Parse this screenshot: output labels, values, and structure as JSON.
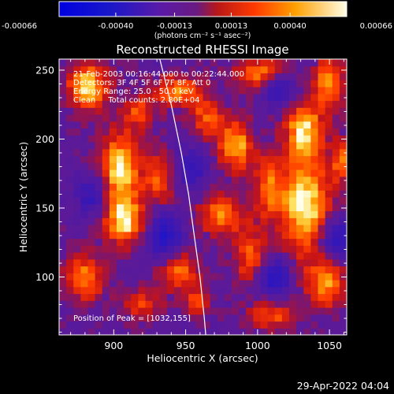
{
  "footer": {
    "timestamp": "29-Apr-2022 04:04"
  },
  "chart_data": {
    "type": "heatmap",
    "title": "Reconstructed RHESSI Image",
    "xlabel": "Heliocentric X (arcsec)",
    "ylabel": "Heliocentric Y (arcsec)",
    "xlim": [
      862,
      1062
    ],
    "ylim": [
      58,
      258
    ],
    "xticks": [
      "900",
      "950",
      "1000",
      "1050"
    ],
    "xtick_values": [
      900,
      950,
      1000,
      1050
    ],
    "yticks": [
      "100",
      "150",
      "200",
      "250"
    ],
    "ytick_values": [
      100,
      150,
      200,
      250
    ],
    "colorbar": {
      "min": -0.00066,
      "max": 0.00066,
      "tick_labels": [
        "-0.00066",
        "-0.00040",
        "-0.00013",
        "0.00013",
        "0.00040",
        "0.00066"
      ],
      "tick_values": [
        -0.00066,
        -0.0004,
        -0.00013,
        0.00013,
        0.0004,
        0.00066
      ],
      "unit_label": "(photons cm⁻² s⁻¹ asec⁻²)"
    },
    "annotations": [
      "21-Feb-2003 00:16:44.000 to 00:22:44.000",
      "Detectors: 3F 4F 5F 6F 7F 8F, Att 0",
      "Energy Range: 25.0 - 50.0 keV",
      "Clean     Total counts: 2.80E+04"
    ],
    "peak_label": "Position of Peak = [1032,155]",
    "peak": [
      1032,
      155
    ],
    "limb_curve": [
      [
        932,
        258
      ],
      [
        940,
        225
      ],
      [
        947,
        190
      ],
      [
        952,
        160
      ],
      [
        956,
        130
      ],
      [
        960,
        100
      ],
      [
        963,
        70
      ],
      [
        964,
        58
      ]
    ],
    "bright_sources": [
      {
        "x": 1033,
        "y": 152,
        "intensity": 1.0,
        "sx": 12,
        "sy": 26
      },
      {
        "x": 905,
        "y": 178,
        "intensity": 0.95,
        "sx": 10,
        "sy": 20
      },
      {
        "x": 908,
        "y": 140,
        "intensity": 0.85,
        "sx": 10,
        "sy": 12
      },
      {
        "x": 882,
        "y": 238,
        "intensity": 0.95,
        "sx": 10,
        "sy": 12
      },
      {
        "x": 1032,
        "y": 207,
        "intensity": 0.85,
        "sx": 9,
        "sy": 14
      },
      {
        "x": 985,
        "y": 195,
        "intensity": 0.8,
        "sx": 9,
        "sy": 13
      },
      {
        "x": 975,
        "y": 145,
        "intensity": 0.7,
        "sx": 12,
        "sy": 10
      },
      {
        "x": 945,
        "y": 105,
        "intensity": 0.7,
        "sx": 10,
        "sy": 10
      },
      {
        "x": 932,
        "y": 170,
        "intensity": 0.55,
        "sx": 7,
        "sy": 14
      },
      {
        "x": 945,
        "y": 235,
        "intensity": 0.75,
        "sx": 12,
        "sy": 8
      },
      {
        "x": 1000,
        "y": 248,
        "intensity": 0.7,
        "sx": 12,
        "sy": 8
      },
      {
        "x": 1050,
        "y": 240,
        "intensity": 0.75,
        "sx": 8,
        "sy": 14
      },
      {
        "x": 995,
        "y": 115,
        "intensity": 0.6,
        "sx": 8,
        "sy": 14
      },
      {
        "x": 1008,
        "y": 165,
        "intensity": 0.65,
        "sx": 7,
        "sy": 16
      },
      {
        "x": 965,
        "y": 215,
        "intensity": 0.6,
        "sx": 8,
        "sy": 10
      },
      {
        "x": 880,
        "y": 100,
        "intensity": 0.7,
        "sx": 10,
        "sy": 12
      },
      {
        "x": 1048,
        "y": 95,
        "intensity": 0.7,
        "sx": 10,
        "sy": 12
      },
      {
        "x": 920,
        "y": 80,
        "intensity": 0.5,
        "sx": 10,
        "sy": 8
      },
      {
        "x": 1010,
        "y": 72,
        "intensity": 0.55,
        "sx": 12,
        "sy": 8
      },
      {
        "x": 1058,
        "y": 185,
        "intensity": 0.6,
        "sx": 5,
        "sy": 12
      },
      {
        "x": 918,
        "y": 220,
        "intensity": 0.5,
        "sx": 8,
        "sy": 8
      },
      {
        "x": 958,
        "y": 82,
        "intensity": 0.5,
        "sx": 6,
        "sy": 8
      }
    ],
    "dark_sources": [
      {
        "x": 935,
        "y": 130,
        "intensity": 0.8,
        "sx": 9,
        "sy": 12
      },
      {
        "x": 1012,
        "y": 100,
        "intensity": 0.7,
        "sx": 8,
        "sy": 10
      },
      {
        "x": 955,
        "y": 180,
        "intensity": 0.55,
        "sx": 8,
        "sy": 10
      },
      {
        "x": 1055,
        "y": 128,
        "intensity": 0.7,
        "sx": 8,
        "sy": 10
      },
      {
        "x": 1015,
        "y": 235,
        "intensity": 0.6,
        "sx": 8,
        "sy": 8
      },
      {
        "x": 885,
        "y": 160,
        "intensity": 0.6,
        "sx": 7,
        "sy": 10
      }
    ]
  }
}
